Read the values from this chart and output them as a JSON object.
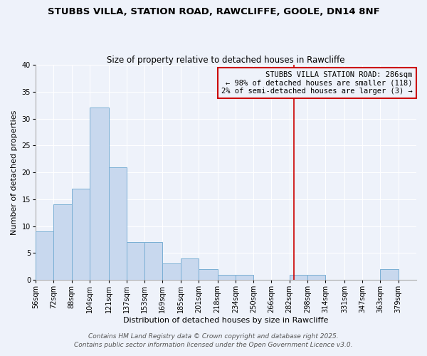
{
  "title": "STUBBS VILLA, STATION ROAD, RAWCLIFFE, GOOLE, DN14 8NF",
  "subtitle": "Size of property relative to detached houses in Rawcliffe",
  "xlabel": "Distribution of detached houses by size in Rawcliffe",
  "ylabel": "Number of detached properties",
  "bin_labels": [
    "56sqm",
    "72sqm",
    "88sqm",
    "104sqm",
    "121sqm",
    "137sqm",
    "153sqm",
    "169sqm",
    "185sqm",
    "201sqm",
    "218sqm",
    "234sqm",
    "250sqm",
    "266sqm",
    "282sqm",
    "298sqm",
    "314sqm",
    "331sqm",
    "347sqm",
    "363sqm",
    "379sqm"
  ],
  "bin_edges": [
    56,
    72,
    88,
    104,
    121,
    137,
    153,
    169,
    185,
    201,
    218,
    234,
    250,
    266,
    282,
    298,
    314,
    331,
    347,
    363,
    379,
    395
  ],
  "bar_heights": [
    9,
    14,
    17,
    32,
    21,
    7,
    7,
    3,
    4,
    2,
    1,
    1,
    0,
    0,
    1,
    1,
    0,
    0,
    0,
    2,
    0
  ],
  "bar_color": "#c8d8ee",
  "bar_edge_color": "#7aafd4",
  "property_line_x": 286,
  "property_line_color": "#cc0000",
  "annotation_title": "STUBBS VILLA STATION ROAD: 286sqm",
  "annotation_line1": "← 98% of detached houses are smaller (118)",
  "annotation_line2": "2% of semi-detached houses are larger (3) →",
  "annotation_box_color": "#cc0000",
  "ylim": [
    0,
    40
  ],
  "yticks": [
    0,
    5,
    10,
    15,
    20,
    25,
    30,
    35,
    40
  ],
  "background_color": "#eef2fa",
  "grid_color": "#ffffff",
  "footer1": "Contains HM Land Registry data © Crown copyright and database right 2025.",
  "footer2": "Contains public sector information licensed under the Open Government Licence v3.0.",
  "title_fontsize": 9.5,
  "subtitle_fontsize": 8.5,
  "axis_label_fontsize": 8,
  "tick_fontsize": 7,
  "annotation_fontsize": 7.5,
  "footer_fontsize": 6.5
}
